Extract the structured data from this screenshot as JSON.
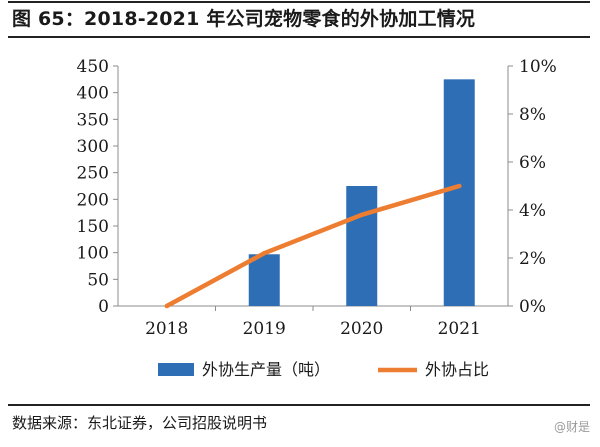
{
  "figure": {
    "title": "图 65：2018-2021 年公司宠物零食的外协加工情况",
    "source": "数据来源：东北证券，公司招股说明书",
    "watermark": "@财是"
  },
  "chart_data": {
    "type": "bar+line",
    "categories": [
      "2018",
      "2019",
      "2020",
      "2021"
    ],
    "series": [
      {
        "name": "外协生产量（吨）",
        "type": "bar",
        "axis": "left",
        "color": "#2e6eb5",
        "values": [
          0,
          97,
          225,
          425
        ]
      },
      {
        "name": "外协占比",
        "type": "line",
        "axis": "right",
        "color": "#ed7d31",
        "values": [
          0,
          0.022,
          0.038,
          0.05
        ]
      }
    ],
    "y_left": {
      "min": 0,
      "max": 450,
      "ticks": [
        0,
        50,
        100,
        150,
        200,
        250,
        300,
        350,
        400,
        450
      ]
    },
    "y_right": {
      "min": 0,
      "max": 0.1,
      "ticks": [
        "0%",
        "2%",
        "4%",
        "6%",
        "8%",
        "10%"
      ]
    },
    "grid": false,
    "legend": "bottom"
  }
}
